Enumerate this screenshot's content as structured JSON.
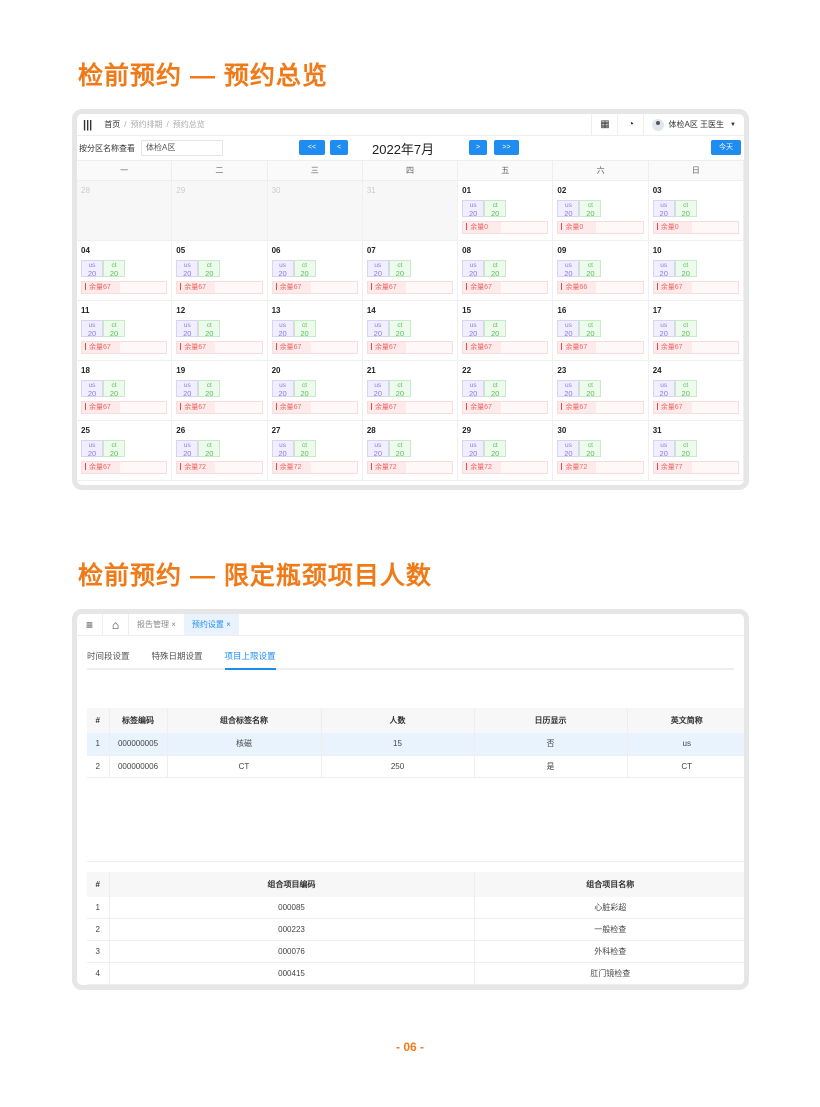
{
  "section1_title": "检前预约 — 预约总览",
  "section2_title": "检前预约 — 限定瓶颈项目人数",
  "page_number": "- 06 -",
  "calendar": {
    "breadcrumb": [
      "首页",
      "预约排期",
      "预约总览"
    ],
    "user": "体检A区  王医生",
    "filter_label": "按分区名称查看",
    "filter_value": "体检A区",
    "nav": {
      "first": "<<",
      "prev": "<",
      "next": ">",
      "last": ">>",
      "today": "今天"
    },
    "month": "2022年7月",
    "weekdays": [
      "一",
      "二",
      "三",
      "四",
      "五",
      "六",
      "日"
    ],
    "prev_month_days": [
      "28",
      "29",
      "30",
      "31"
    ],
    "tag_labels": [
      "us",
      "ct"
    ],
    "remain_label": "余量",
    "days": [
      {
        "d": "01",
        "us": "20",
        "ct": "20",
        "rem": "0"
      },
      {
        "d": "02",
        "us": "20",
        "ct": "20",
        "rem": "0"
      },
      {
        "d": "03",
        "us": "20",
        "ct": "20",
        "rem": "0"
      },
      {
        "d": "04",
        "us": "20",
        "ct": "20",
        "rem": "67"
      },
      {
        "d": "05",
        "us": "20",
        "ct": "20",
        "rem": "67"
      },
      {
        "d": "06",
        "us": "20",
        "ct": "20",
        "rem": "67"
      },
      {
        "d": "07",
        "us": "20",
        "ct": "20",
        "rem": "67"
      },
      {
        "d": "08",
        "us": "20",
        "ct": "20",
        "rem": "67"
      },
      {
        "d": "09",
        "us": "20",
        "ct": "20",
        "rem": "66"
      },
      {
        "d": "10",
        "us": "20",
        "ct": "20",
        "rem": "67"
      },
      {
        "d": "11",
        "us": "20",
        "ct": "20",
        "rem": "67"
      },
      {
        "d": "12",
        "us": "20",
        "ct": "20",
        "rem": "67"
      },
      {
        "d": "13",
        "us": "20",
        "ct": "20",
        "rem": "67"
      },
      {
        "d": "14",
        "us": "20",
        "ct": "20",
        "rem": "67"
      },
      {
        "d": "15",
        "us": "20",
        "ct": "20",
        "rem": "67"
      },
      {
        "d": "16",
        "us": "20",
        "ct": "20",
        "rem": "67"
      },
      {
        "d": "17",
        "us": "20",
        "ct": "20",
        "rem": "67"
      },
      {
        "d": "18",
        "us": "20",
        "ct": "20",
        "rem": "67"
      },
      {
        "d": "19",
        "us": "20",
        "ct": "20",
        "rem": "67"
      },
      {
        "d": "20",
        "us": "20",
        "ct": "20",
        "rem": "67"
      },
      {
        "d": "21",
        "us": "20",
        "ct": "20",
        "rem": "67"
      },
      {
        "d": "22",
        "us": "20",
        "ct": "20",
        "rem": "67"
      },
      {
        "d": "23",
        "us": "20",
        "ct": "20",
        "rem": "67"
      },
      {
        "d": "24",
        "us": "20",
        "ct": "20",
        "rem": "67"
      },
      {
        "d": "25",
        "us": "20",
        "ct": "20",
        "rem": "67"
      },
      {
        "d": "26",
        "us": "20",
        "ct": "20",
        "rem": "72"
      },
      {
        "d": "27",
        "us": "20",
        "ct": "20",
        "rem": "72"
      },
      {
        "d": "28",
        "us": "20",
        "ct": "20",
        "rem": "72"
      },
      {
        "d": "29",
        "us": "20",
        "ct": "20",
        "rem": "72"
      },
      {
        "d": "30",
        "us": "20",
        "ct": "20",
        "rem": "72"
      },
      {
        "d": "31",
        "us": "20",
        "ct": "20",
        "rem": "77"
      }
    ]
  },
  "settings": {
    "tabs": [
      {
        "label": "报告管理 ×"
      },
      {
        "label": "预约设置 ×"
      }
    ],
    "subtabs": [
      "时间段设置",
      "特殊日期设置",
      "项目上限设置"
    ],
    "table1": {
      "headers": [
        "#",
        "标签编码",
        "组合标签名称",
        "人数",
        "日历显示",
        "英文简称"
      ],
      "rows": [
        [
          "1",
          "000000005",
          "核磁",
          "15",
          "否",
          "us"
        ],
        [
          "2",
          "000000006",
          "CT",
          "250",
          "是",
          "CT"
        ]
      ]
    },
    "table2": {
      "headers": [
        "#",
        "组合项目编码",
        "组合项目名称"
      ],
      "rows": [
        [
          "1",
          "000085",
          "心脏彩超"
        ],
        [
          "2",
          "000223",
          "一般检查"
        ],
        [
          "3",
          "000076",
          "外科检查"
        ],
        [
          "4",
          "000415",
          "肛门镜检查"
        ]
      ]
    }
  },
  "colors": {
    "accent": "#f07a18",
    "primary": "#1e8cf0"
  }
}
